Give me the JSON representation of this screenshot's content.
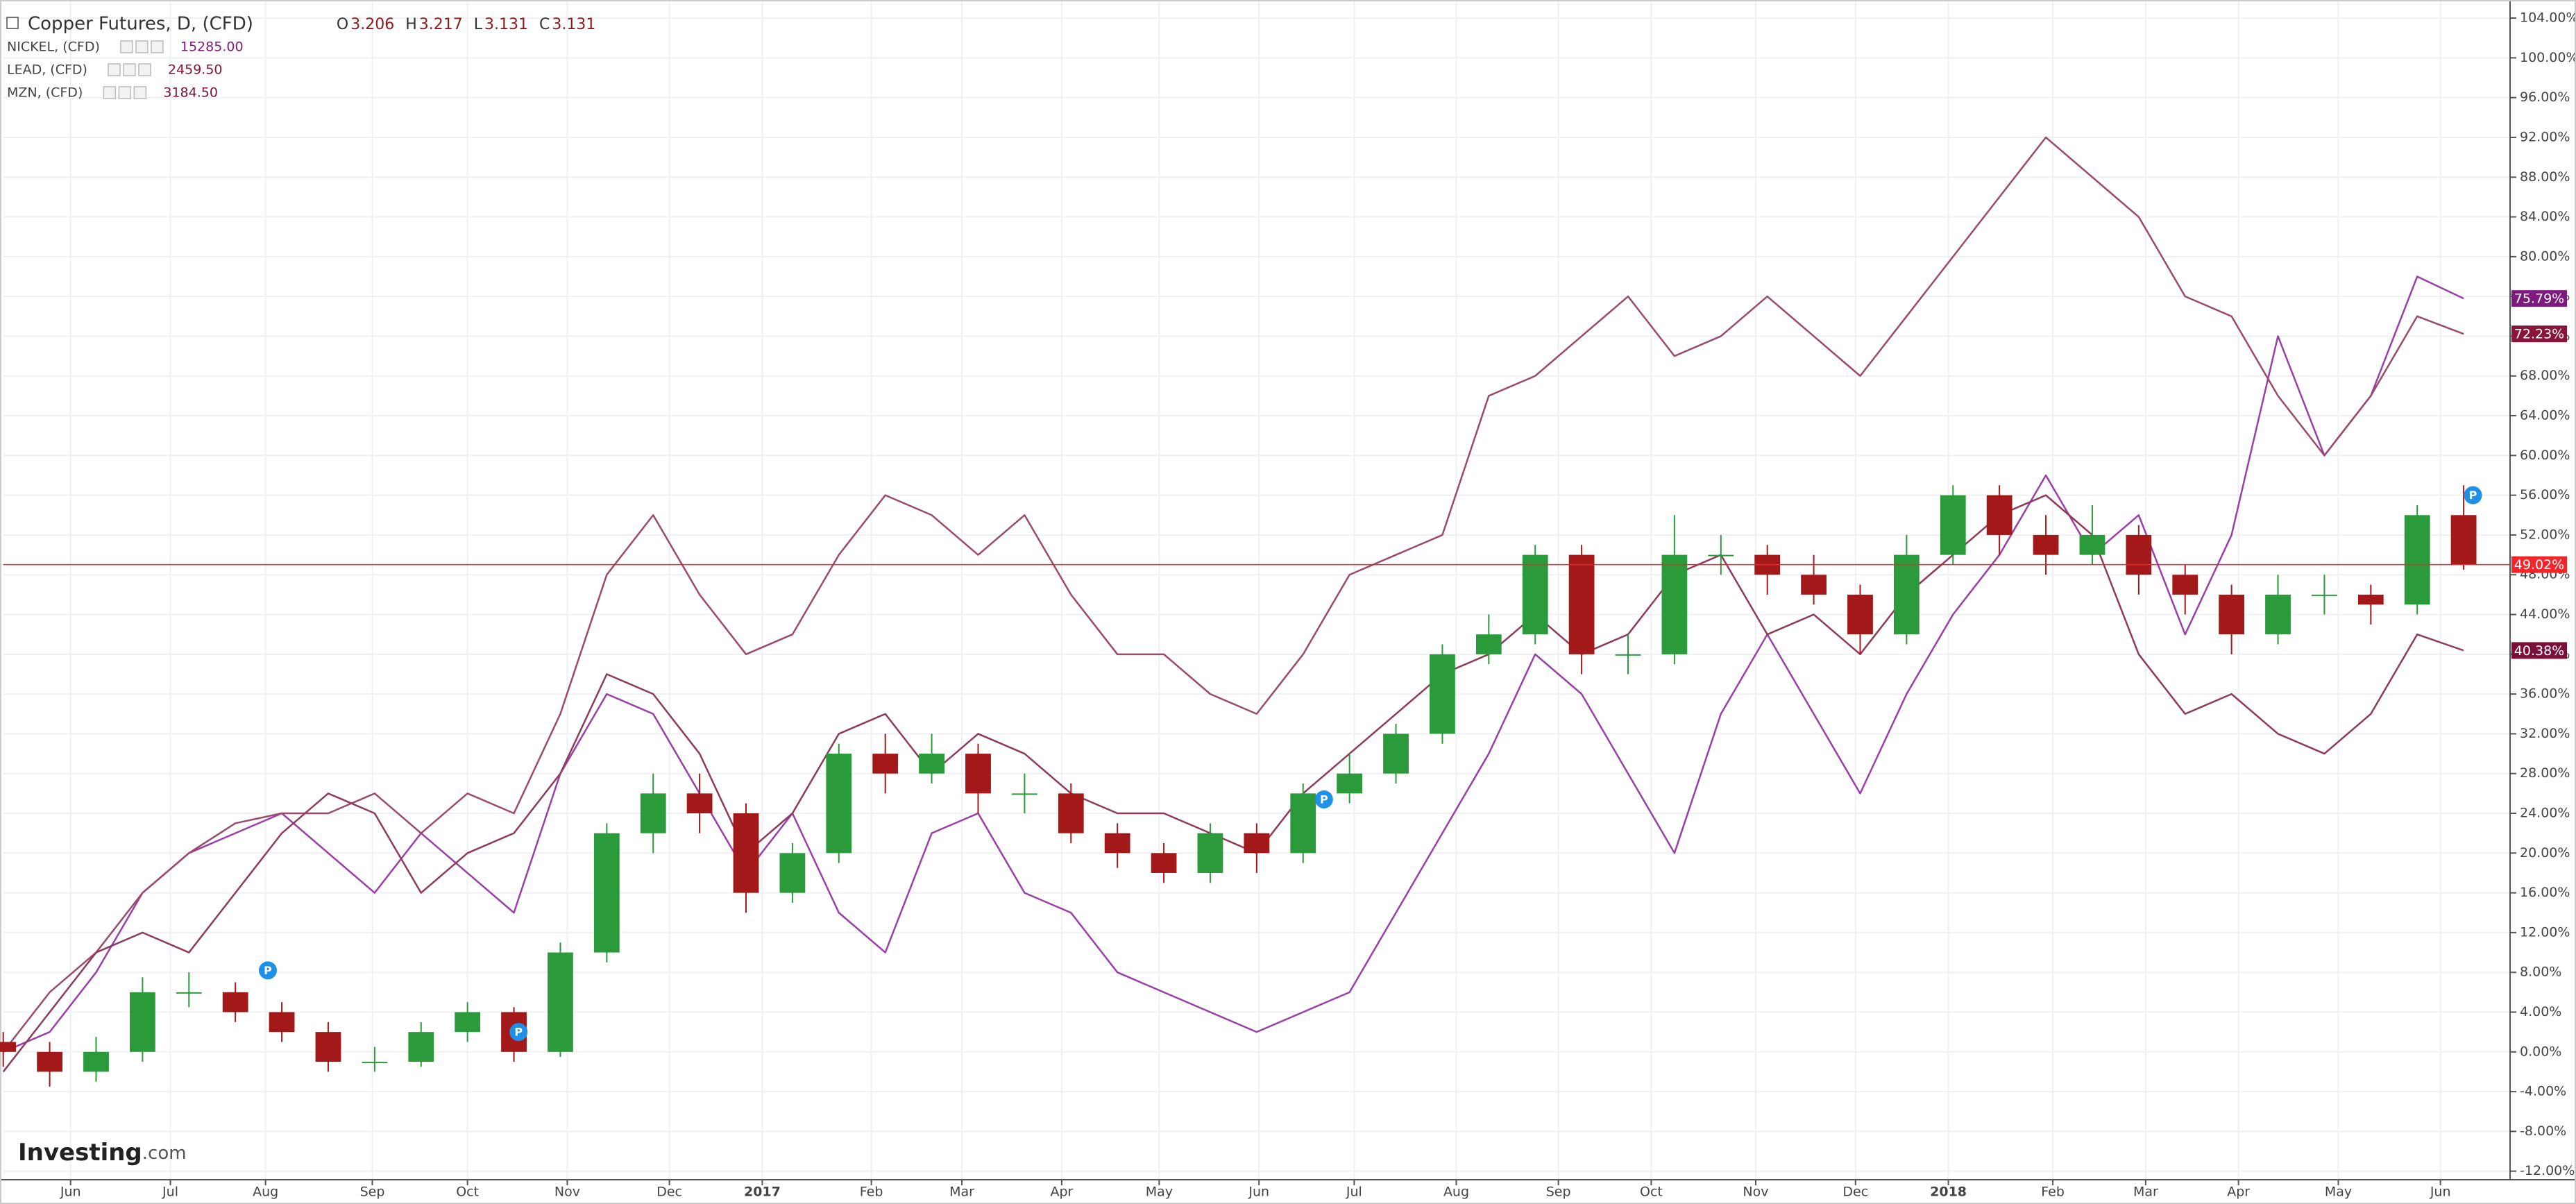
{
  "chart_data": {
    "type": "candlestick",
    "title": "Copper Futures, D, (CFD)",
    "header": [
      {
        "label": "O",
        "value": "3.206"
      },
      {
        "label": "H",
        "value": "3.217"
      },
      {
        "label": "L",
        "value": "3.131"
      },
      {
        "label": "C",
        "value": "3.131"
      }
    ],
    "logo": {
      "brand": "Investing",
      "suffix": ".com"
    },
    "x": [
      0,
      2,
      4,
      6,
      8,
      10,
      12,
      14,
      16,
      18,
      20,
      22,
      24,
      26,
      28,
      30,
      32,
      34,
      36,
      38,
      40,
      42,
      44,
      46,
      48,
      50,
      52,
      54,
      56,
      58,
      60,
      62,
      64,
      66,
      68,
      70,
      72,
      74,
      76,
      78,
      80,
      82,
      84,
      86,
      88,
      90,
      92,
      94,
      96,
      98,
      100,
      102,
      104,
      106
    ],
    "candles": {
      "name": "Copper Futures",
      "up_color": "#2a9a3a",
      "down_color": "#a31818",
      "last_color": "#f0262b",
      "last_label": "49.02%",
      "open": [
        1,
        0,
        -2,
        0,
        6,
        6,
        4,
        2,
        -1,
        -1,
        2,
        4,
        0,
        10,
        22,
        26,
        24,
        16,
        20,
        30,
        28,
        30,
        26,
        26,
        22,
        20,
        18,
        22,
        20,
        26,
        28,
        32,
        40,
        42,
        50,
        40,
        40,
        50,
        50,
        48,
        46,
        42,
        50,
        56,
        52,
        50,
        52,
        48,
        46,
        42,
        46,
        46,
        45,
        54
      ],
      "high": [
        2,
        1,
        1.5,
        7.5,
        8,
        7,
        5,
        3,
        0.5,
        3,
        5,
        4.5,
        11,
        23,
        28,
        28,
        25,
        21,
        31,
        32,
        32,
        31,
        28,
        27,
        23,
        21,
        23,
        23,
        27,
        30,
        33,
        41,
        44,
        51,
        51,
        42,
        54,
        52,
        51,
        50,
        47,
        52,
        57,
        57,
        54,
        55,
        53,
        49,
        47,
        48,
        48,
        47,
        55,
        57
      ],
      "low": [
        -1.5,
        -3.5,
        -3,
        -1,
        4.5,
        3,
        1,
        -2,
        -2,
        -1.5,
        1,
        -1,
        -0.5,
        9,
        20,
        22,
        14,
        15,
        19,
        26,
        27,
        24,
        24,
        21,
        18.5,
        17,
        17,
        18,
        19,
        25,
        27,
        31,
        39,
        41,
        38,
        38,
        39,
        48,
        46,
        45,
        40,
        41,
        49,
        50,
        48,
        49,
        46,
        44,
        40,
        41,
        44,
        43,
        44,
        48.5
      ],
      "close": [
        0,
        -2,
        0,
        6,
        6,
        4,
        2,
        -1,
        -1,
        2,
        4,
        0,
        10,
        22,
        26,
        24,
        16,
        20,
        30,
        28,
        30,
        26,
        26,
        22,
        20,
        18,
        22,
        20,
        26,
        28,
        32,
        40,
        42,
        50,
        40,
        40,
        50,
        50,
        48,
        46,
        42,
        50,
        56,
        52,
        50,
        52,
        48,
        46,
        42,
        46,
        46,
        45,
        54,
        49.02
      ]
    },
    "series": [
      {
        "name": "NICKEL, (CFD)",
        "price": "15285.00",
        "color": "#9a3fa8",
        "label_color": "#7e1a7e",
        "last_label": "75.79%",
        "values": [
          0,
          2,
          8,
          16,
          20,
          22,
          24,
          20,
          16,
          22,
          18,
          14,
          28,
          36,
          34,
          26,
          18,
          24,
          14,
          10,
          22,
          24,
          16,
          14,
          8,
          6,
          4,
          2,
          4,
          6,
          14,
          22,
          30,
          40,
          36,
          28,
          20,
          34,
          42,
          34,
          26,
          36,
          44,
          50,
          58,
          50,
          54,
          42,
          52,
          72,
          60,
          66,
          78,
          75.79
        ]
      },
      {
        "name": "LEAD, (CFD)",
        "price": "2459.50",
        "color": "#9b4a6c",
        "label_color": "#8b1538",
        "last_label": "72.23%",
        "values": [
          0,
          6,
          10,
          16,
          20,
          23,
          24,
          24,
          26,
          22,
          26,
          24,
          34,
          48,
          54,
          46,
          40,
          42,
          50,
          56,
          54,
          50,
          54,
          46,
          40,
          40,
          36,
          34,
          40,
          48,
          50,
          52,
          66,
          68,
          72,
          76,
          70,
          72,
          76,
          72,
          68,
          74,
          80,
          86,
          92,
          88,
          84,
          76,
          74,
          66,
          60,
          66,
          74,
          72.23
        ]
      },
      {
        "name": "MZN, (CFD)",
        "price": "3184.50",
        "color": "#8e3a5a",
        "label_color": "#7a1038",
        "last_label": "40.38%",
        "values": [
          -2,
          4,
          10,
          12,
          10,
          16,
          22,
          26,
          24,
          16,
          20,
          22,
          28,
          38,
          36,
          30,
          20,
          24,
          32,
          34,
          28,
          32,
          30,
          26,
          24,
          24,
          22,
          20,
          26,
          30,
          34,
          38,
          40,
          44,
          40,
          42,
          48,
          50,
          42,
          44,
          40,
          46,
          50,
          54,
          56,
          52,
          40,
          34,
          36,
          32,
          30,
          34,
          42,
          40.38
        ]
      }
    ],
    "events": [
      {
        "x": 11.4,
        "y": 8.2,
        "label": "P"
      },
      {
        "x": 22.2,
        "y": 2,
        "label": "P"
      },
      {
        "x": 56.9,
        "y": 25.4,
        "label": "P"
      },
      {
        "x": 106.4,
        "y": 56,
        "label": "P"
      }
    ],
    "xlim": [
      0,
      108
    ],
    "ylim": [
      -12.86,
      105.82
    ],
    "xticks": [
      {
        "value": 2.9,
        "label": "Jun"
      },
      {
        "value": 7.2,
        "label": "Jul"
      },
      {
        "value": 11.3,
        "label": "Aug"
      },
      {
        "value": 15.9,
        "label": "Sep"
      },
      {
        "value": 20,
        "label": "Oct"
      },
      {
        "value": 24.3,
        "label": "Nov"
      },
      {
        "value": 28.7,
        "label": "Dec"
      },
      {
        "value": 32.7,
        "label": "2017"
      },
      {
        "value": 37.4,
        "label": "Feb"
      },
      {
        "value": 41.3,
        "label": "Mar"
      },
      {
        "value": 45.6,
        "label": "Apr"
      },
      {
        "value": 49.8,
        "label": "May"
      },
      {
        "value": 54.1,
        "label": "Jun"
      },
      {
        "value": 58.2,
        "label": "Jul"
      },
      {
        "value": 62.6,
        "label": "Aug"
      },
      {
        "value": 67,
        "label": "Sep"
      },
      {
        "value": 71,
        "label": "Oct"
      },
      {
        "value": 75.5,
        "label": "Nov"
      },
      {
        "value": 79.8,
        "label": "Dec"
      },
      {
        "value": 83.8,
        "label": "2018"
      },
      {
        "value": 88.3,
        "label": "Feb"
      },
      {
        "value": 92.3,
        "label": "Mar"
      },
      {
        "value": 96.3,
        "label": "Apr"
      },
      {
        "value": 100.6,
        "label": "May"
      },
      {
        "value": 105,
        "label": "Jun"
      }
    ],
    "yticks": [
      {
        "value": -12,
        "label": "-12.00%"
      },
      {
        "value": -8,
        "label": "-8.00%"
      },
      {
        "value": -4,
        "label": "-4.00%"
      },
      {
        "value": 0,
        "label": "0.00%"
      },
      {
        "value": 4,
        "label": "4.00%"
      },
      {
        "value": 8,
        "label": "8.00%"
      },
      {
        "value": 12,
        "label": "12.00%"
      },
      {
        "value": 16,
        "label": "16.00%"
      },
      {
        "value": 20,
        "label": "20.00%"
      },
      {
        "value": 24,
        "label": "24.00%"
      },
      {
        "value": 28,
        "label": "28.00%"
      },
      {
        "value": 32,
        "label": "32.00%"
      },
      {
        "value": 36,
        "label": "36.00%"
      },
      {
        "value": 40,
        "label": "40.00%"
      },
      {
        "value": 44,
        "label": "44.00%"
      },
      {
        "value": 48,
        "label": "48.00%"
      },
      {
        "value": 52,
        "label": "52.00%"
      },
      {
        "value": 56,
        "label": "56.00%"
      },
      {
        "value": 60,
        "label": "60.00%"
      },
      {
        "value": 64,
        "label": "64.00%"
      },
      {
        "value": 68,
        "label": "68.00%"
      },
      {
        "value": 72,
        "label": "72.00%"
      },
      {
        "value": 76,
        "label": "76.00%"
      },
      {
        "value": 80,
        "label": "80.00%"
      },
      {
        "value": 84,
        "label": "84.00%"
      },
      {
        "value": 88,
        "label": "88.00%"
      },
      {
        "value": 92,
        "label": "92.00%"
      },
      {
        "value": 96,
        "label": "96.00%"
      },
      {
        "value": 100,
        "label": "100.00%"
      },
      {
        "value": 104,
        "label": "104.00%"
      }
    ],
    "grid": true
  }
}
